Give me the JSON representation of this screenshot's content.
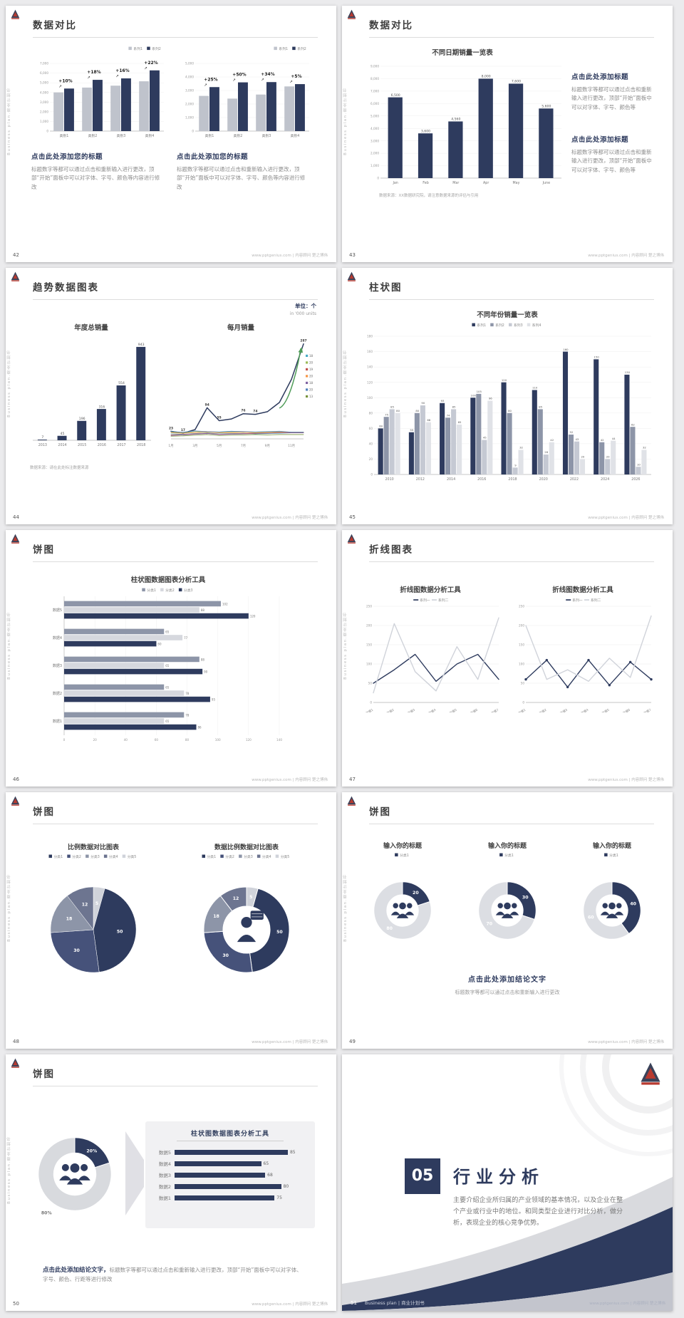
{
  "page_bg": "#ebebed",
  "accent_navy": "#2e3b5e",
  "sidebar_text": "Business plan.商业计划书",
  "footer_site": "www.pptgenius.com | 内容顾问 楚之博伟",
  "slides": [
    {
      "page": "42",
      "title": "数据对比",
      "blocks": [
        {
          "heading": "点击此处添加您的标题",
          "body": "标题数字等都可以通过点击和重新输入进行更改，顶部“开始”面板中可以对字体、字号、颜色等内容进行修改"
        },
        {
          "heading": "点击此处添加您的标题",
          "body": "标题数字等都可以通过点击和重新输入进行更改，顶部“开始”面板中可以对字体、字号、颜色等内容进行修改"
        }
      ]
    },
    {
      "page": "43",
      "title": "数据对比",
      "note": "数据来源：XX数据研究院，请注意数据来源的评估与引用",
      "blocks": [
        {
          "heading": "点击此处添加标题",
          "body": "标题数字等都可以通过点击和重新输入进行更改，顶部“开始”面板中可以对字体、字号、颜色等"
        },
        {
          "heading": "点击此处添加标题",
          "body": "标题数字等都可以通过点击和重新输入进行更改，顶部“开始”面板中可以对字体、字号、颜色等"
        }
      ]
    },
    {
      "page": "44",
      "title": "趋势数据图表",
      "unit": "单位：个",
      "unit_sub": "in '000 units",
      "note": "数据来源：请在此处标注数据来源"
    },
    {
      "page": "45",
      "title": "柱状图"
    },
    {
      "page": "46",
      "title": "饼图"
    },
    {
      "page": "47",
      "title": "折线图表"
    },
    {
      "page": "48",
      "title": "饼图"
    },
    {
      "page": "49",
      "title": "饼图",
      "conclusion": "点击此处添加结论文字",
      "conclusion_body": "标题数字等都可以通过点击和重新输入进行更改"
    },
    {
      "page": "50",
      "title": "饼图",
      "conclusion_bold": "点击此处添加结论文字，",
      "conclusion_rest": "标题数字等都可以通过点击和重新输入进行更改，顶部“开始”面板中可以对字体、字号、颜色、行距等进行修改"
    },
    {
      "page": "51",
      "number": "05",
      "title": "行业分析",
      "body": "主要介绍企业所归属的产业领域的基本情况，以及企业在整个产业或行业中的地位。和同类型企业进行对比分析，做分析，表现企业的核心竞争优势。",
      "footer_label": "Business plan | 商业计划书"
    }
  ],
  "chart_data": [
    {
      "type": "bar",
      "name": "slide42-left-comparison",
      "legend": [
        {
          "label": "系列1",
          "color": "#bfc3cc"
        },
        {
          "label": "系列2",
          "color": "#2e3b5e"
        }
      ],
      "legend_align": "right",
      "categories": [
        "类别1",
        "类别2",
        "类别3",
        "类别4"
      ],
      "series": [
        {
          "name": "系列1",
          "color": "#bfc3cc",
          "values": [
            4000,
            4500,
            4700,
            5150
          ]
        },
        {
          "name": "系列2",
          "color": "#2e3b5e",
          "values": [
            4400,
            5300,
            5450,
            6280
          ]
        }
      ],
      "group_labels": [
        "+10%",
        "+18%",
        "+16%",
        "+22%"
      ],
      "ylim": [
        0,
        7000
      ],
      "ystep": 1000,
      "comma": true
    },
    {
      "type": "bar",
      "name": "slide42-right-comparison",
      "legend": [
        {
          "label": "系列1",
          "color": "#bfc3cc"
        },
        {
          "label": "系列2",
          "color": "#2e3b5e"
        }
      ],
      "legend_align": "right",
      "categories": [
        "类别1",
        "类别2",
        "类别3",
        "类别4"
      ],
      "series": [
        {
          "name": "系列1",
          "color": "#bfc3cc",
          "values": [
            2600,
            2400,
            2700,
            3300
          ]
        },
        {
          "name": "系列2",
          "color": "#2e3b5e",
          "values": [
            3250,
            3600,
            3620,
            3470
          ]
        }
      ],
      "group_labels": [
        "+25%",
        "+50%",
        "+34%",
        "+5%"
      ],
      "ylim": [
        0,
        5000
      ],
      "ystep": 1000,
      "comma": true
    },
    {
      "type": "bar",
      "name": "slide43-daily-sales",
      "title": "不同日期销量一览表",
      "categories": [
        "Jan",
        "Feb",
        "Mar",
        "Apr",
        "May",
        "June"
      ],
      "series": [
        {
          "name": "销量",
          "color": "#2e3b5e",
          "values": [
            6500,
            3600,
            4560,
            8000,
            7600,
            5600
          ]
        }
      ],
      "value_labels": true,
      "ylim": [
        0,
        9000
      ],
      "ystep": 1000,
      "comma": true
    },
    {
      "type": "bar",
      "name": "slide44-annual-sales",
      "title": "年度总销量",
      "categories": [
        "2013",
        "2014",
        "2015",
        "2016",
        "2017",
        "2018"
      ],
      "series": [
        {
          "name": "年度总销量",
          "color": "#2e3b5e",
          "values": [
            7,
            45,
            196,
            316,
            554,
            943
          ]
        }
      ],
      "value_labels": true,
      "ylim": [
        0,
        1000
      ],
      "ystep": 200,
      "hide_yaxis": true
    },
    {
      "type": "line",
      "name": "slide44-monthly-sales",
      "title": "每月销量",
      "xlabels": [
        "1月",
        "3月",
        "5月",
        "7月",
        "9月",
        "11月"
      ],
      "ylim": [
        0,
        310
      ],
      "series": [
        {
          "name": "月销量",
          "color": "#2e3b5e",
          "width": 1.5,
          "values": [
            23,
            17,
            28,
            94,
            55,
            60,
            76,
            74,
            82,
            110,
            180,
            287
          ],
          "point_labels": [
            {
              "i": 0,
              "t": "23"
            },
            {
              "i": 1,
              "t": "17"
            },
            {
              "i": 3,
              "t": "94"
            },
            {
              "i": 4,
              "t": "55"
            },
            {
              "i": 6,
              "t": "76"
            },
            {
              "i": 7,
              "t": "74"
            },
            {
              "i": 11,
              "t": "287"
            }
          ]
        },
        {
          "name": "系列2",
          "color": "#4bacc6",
          "width": 0.8,
          "values": [
            15,
            14,
            16,
            18,
            15,
            16,
            17,
            15,
            16,
            17,
            18,
            18
          ]
        },
        {
          "name": "系列3",
          "color": "#9bbb59",
          "width": 0.8,
          "values": [
            20,
            18,
            22,
            20,
            19,
            21,
            20,
            19,
            20,
            21,
            20,
            20
          ]
        },
        {
          "name": "系列4",
          "color": "#c0504d",
          "width": 0.8,
          "values": [
            12,
            13,
            15,
            17,
            14,
            15,
            16,
            17,
            18,
            19,
            19,
            19
          ]
        },
        {
          "name": "系列5",
          "color": "#f79646",
          "width": 0.8,
          "values": [
            18,
            17,
            19,
            21,
            18,
            19,
            20,
            18,
            19,
            20,
            20,
            20
          ]
        },
        {
          "name": "系列6",
          "color": "#8064a2",
          "width": 0.8,
          "values": [
            10,
            12,
            14,
            16,
            13,
            14,
            15,
            16,
            17,
            18,
            18,
            18
          ]
        },
        {
          "name": "系列7",
          "color": "#4f81bd",
          "width": 0.8,
          "values": [
            22,
            20,
            24,
            22,
            21,
            23,
            22,
            21,
            22,
            23,
            20,
            20
          ]
        },
        {
          "name": "系列8",
          "color": "#77933c",
          "width": 0.8,
          "values": [
            8,
            9,
            11,
            13,
            10,
            11,
            12,
            13,
            12,
            13,
            13,
            13
          ]
        }
      ],
      "right_legend": [
        {
          "t": "18",
          "c": "#4bacc6"
        },
        {
          "t": "20",
          "c": "#9bbb59"
        },
        {
          "t": "19",
          "c": "#c0504d"
        },
        {
          "t": "20",
          "c": "#f79646"
        },
        {
          "t": "18",
          "c": "#8064a2"
        },
        {
          "t": "20",
          "c": "#4f81bd"
        },
        {
          "t": "13",
          "c": "#77933c"
        }
      ],
      "arrow": true
    },
    {
      "type": "bar",
      "name": "slide45-yearly-sales",
      "title": "不同年份销量一览表",
      "legend": [
        {
          "label": "系列1",
          "color": "#2e3b5e"
        },
        {
          "label": "系列2",
          "color": "#8d95a8"
        },
        {
          "label": "系列3",
          "color": "#c5c9d3"
        },
        {
          "label": "系列4",
          "color": "#e0e2e7"
        }
      ],
      "categories": [
        "2010",
        "2012",
        "2014",
        "2016",
        "2018",
        "2020",
        "2022",
        "2024",
        "2026"
      ],
      "series": [
        {
          "name": "系列1",
          "color": "#2e3b5e",
          "values": [
            60,
            55,
            93,
            100,
            120,
            110,
            160,
            150,
            130
          ]
        },
        {
          "name": "系列2",
          "color": "#8d95a8",
          "values": [
            75,
            80,
            74,
            105,
            80,
            85,
            52,
            42,
            62
          ]
        },
        {
          "name": "系列3",
          "color": "#c5c9d3",
          "values": [
            85,
            90,
            85,
            45,
            9,
            26,
            43,
            20,
            10
          ]
        },
        {
          "name": "系列4",
          "color": "#e0e2e7",
          "values": [
            80,
            68,
            65,
            96,
            32,
            42,
            20,
            44,
            32
          ]
        }
      ],
      "value_labels": true,
      "ylim": [
        0,
        180
      ],
      "ystep": 20
    },
    {
      "type": "hbar",
      "name": "slide46-analysis-bars",
      "title": "柱状图数据图表分析工具",
      "legend": [
        {
          "label": "分类1",
          "color": "#8d95a8"
        },
        {
          "label": "分类2",
          "color": "#d6d8de"
        },
        {
          "label": "分类3",
          "color": "#2e3b5e"
        }
      ],
      "categories": [
        "数据5",
        "数据4",
        "数据3",
        "数据2",
        "数据1"
      ],
      "series": [
        {
          "name": "分类1",
          "color": "#8d95a8",
          "values": [
            102,
            65,
            88,
            65,
            78
          ]
        },
        {
          "name": "分类2",
          "color": "#d6d8de",
          "values": [
            88,
            77,
            65,
            78,
            65
          ]
        },
        {
          "name": "分类3",
          "color": "#2e3b5e",
          "values": [
            120,
            60,
            90,
            95,
            86
          ]
        }
      ],
      "value_labels": true,
      "xlim": [
        0,
        140
      ],
      "xstep": 20
    },
    {
      "type": "line",
      "name": "slide47-left-lines",
      "title": "折线图数据分析工具",
      "legend": [
        {
          "label": "系列一",
          "color": "#2e3b5e"
        },
        {
          "label": "系列二",
          "color": "#d0d3da"
        }
      ],
      "xlabels": [
        "数据1",
        "数据2",
        "数据3",
        "数据4",
        "数据5",
        "数据6",
        "数据7"
      ],
      "rotate_x": true,
      "ylim": [
        0,
        250
      ],
      "ystep": 50,
      "series": [
        {
          "name": "系列一",
          "color": "#2e3b5e",
          "width": 1.4,
          "values": [
            50,
            85,
            125,
            55,
            100,
            125,
            60
          ]
        },
        {
          "name": "系列二",
          "color": "#d0d3da",
          "width": 1.4,
          "values": [
            25,
            205,
            80,
            30,
            145,
            60,
            220
          ]
        }
      ]
    },
    {
      "type": "line",
      "name": "slide47-right-lines",
      "title": "折线图数据分析工具",
      "legend": [
        {
          "label": "系列一",
          "color": "#2e3b5e"
        },
        {
          "label": "系列二",
          "color": "#d0d3da"
        }
      ],
      "xlabels": [
        "数据1",
        "数据2",
        "数据3",
        "数据4",
        "数据5",
        "数据6",
        "数据7"
      ],
      "rotate_x": true,
      "ylim": [
        0,
        250
      ],
      "ystep": 50,
      "series": [
        {
          "name": "系列一",
          "color": "#2e3b5e",
          "width": 1.4,
          "marker": true,
          "values": [
            60,
            110,
            40,
            110,
            45,
            105,
            60
          ]
        },
        {
          "name": "系列二",
          "color": "#d0d3da",
          "width": 1.4,
          "values": [
            200,
            60,
            85,
            55,
            115,
            65,
            225
          ]
        }
      ]
    },
    {
      "type": "pie",
      "name": "slide48-pie",
      "title": "比例数据对比图表",
      "legend": [
        {
          "label": "分类1",
          "color": "#2e3b5e"
        },
        {
          "label": "分类2",
          "color": "#46527a"
        },
        {
          "label": "分类3",
          "color": "#8d95a8"
        },
        {
          "label": "分类4",
          "color": "#6d7590"
        },
        {
          "label": "分类5",
          "color": "#d0d3da"
        }
      ],
      "values": [
        5,
        50,
        30,
        18,
        12
      ],
      "labels": [
        "5",
        "50",
        "30",
        "18",
        "12"
      ],
      "colors": [
        "#d0d3da",
        "#2e3b5e",
        "#46527a",
        "#8d95a8",
        "#6d7590"
      ],
      "inner": 0
    },
    {
      "type": "pie",
      "name": "slide48-donut",
      "title": "数据比例数据对比图表",
      "legend": [
        {
          "label": "分类1",
          "color": "#2e3b5e"
        },
        {
          "label": "分类2",
          "color": "#46527a"
        },
        {
          "label": "分类3",
          "color": "#8d95a8"
        },
        {
          "label": "分类4",
          "color": "#6d7590"
        },
        {
          "label": "分类5",
          "color": "#d0d3da"
        }
      ],
      "values": [
        5,
        50,
        30,
        18,
        12
      ],
      "labels": [
        "5",
        "50",
        "30",
        "18",
        "12"
      ],
      "colors": [
        "#d0d3da",
        "#2e3b5e",
        "#46527a",
        "#8d95a8",
        "#6d7590"
      ],
      "inner": 0.55,
      "icon": "person"
    },
    {
      "type": "pie",
      "name": "slide49-donut-1",
      "title": "输入你的标题",
      "legend": [
        {
          "label": "分类1",
          "color": "#2e3b5e"
        }
      ],
      "values": [
        20,
        80
      ],
      "labels": [
        "20",
        "80"
      ],
      "colors": [
        "#2e3b5e",
        "#dcdee3"
      ],
      "inner": 0.55,
      "icon": "team"
    },
    {
      "type": "pie",
      "name": "slide49-donut-2",
      "title": "输入你的标题",
      "legend": [
        {
          "label": "分类1",
          "color": "#2e3b5e"
        }
      ],
      "values": [
        30,
        70
      ],
      "labels": [
        "30",
        "70"
      ],
      "colors": [
        "#2e3b5e",
        "#dcdee3"
      ],
      "inner": 0.55,
      "icon": "team"
    },
    {
      "type": "pie",
      "name": "slide49-donut-3",
      "title": "输入你的标题",
      "legend": [
        {
          "label": "分类1",
          "color": "#2e3b5e"
        }
      ],
      "values": [
        40,
        60
      ],
      "labels": [
        "40",
        "60"
      ],
      "colors": [
        "#2e3b5e",
        "#dcdee3"
      ],
      "inner": 0.55,
      "icon": "team"
    },
    {
      "type": "pie",
      "name": "slide50-donut",
      "values": [
        20,
        80
      ],
      "labels": [
        "20%",
        "80%"
      ],
      "colors": [
        "#2e3b5e",
        "#d8dade"
      ],
      "inner": 0.58,
      "icon": "team",
      "rf": 0.8,
      "label_colors": [
        "#ffffff",
        "#777777"
      ],
      "label_rf": [
        0.79,
        1.32
      ]
    },
    {
      "type": "rowbars",
      "name": "slide50-row-bars",
      "title": "柱状图数据图表分析工具",
      "max": 100,
      "color": "#2e3b5e",
      "rows": [
        {
          "label": "数据5",
          "value": 85
        },
        {
          "label": "数据4",
          "value": 65
        },
        {
          "label": "数据3",
          "value": 68
        },
        {
          "label": "数据2",
          "value": 80
        },
        {
          "label": "数据1",
          "value": 75
        }
      ]
    }
  ]
}
